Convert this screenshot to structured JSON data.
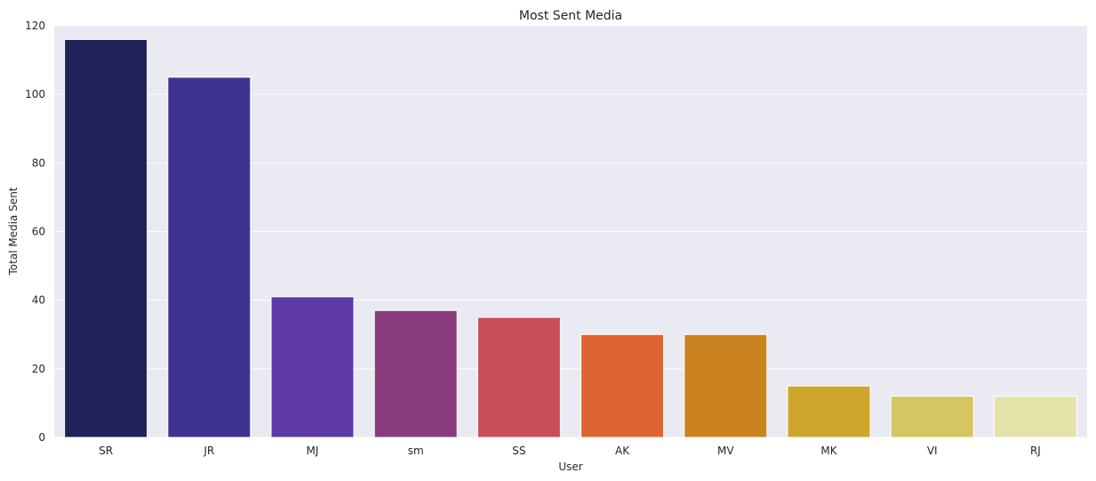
{
  "chart_data": {
    "type": "bar",
    "title": "Most Sent Media",
    "xlabel": "User",
    "ylabel": "Total Media Sent",
    "categories": [
      "SR",
      "JR",
      "MJ",
      "sm",
      "SS",
      "AK",
      "MV",
      "MK",
      "VI",
      "RJ"
    ],
    "values": [
      116,
      105,
      41,
      37,
      35,
      30,
      30,
      15,
      12,
      12
    ],
    "colors": [
      "#22225a",
      "#3e3490",
      "#5e3aa4",
      "#883c7c",
      "#c84e58",
      "#dd6432",
      "#cb8320",
      "#cca72c",
      "#d5c662",
      "#e4e3aa"
    ],
    "ylim": [
      0,
      120
    ],
    "yticks": [
      0,
      20,
      40,
      60,
      80,
      100,
      120
    ],
    "grid": true,
    "style": {
      "background": "#eaeaf2",
      "grid_color": "#ffffff",
      "bar_edge_color": "#ffffff"
    }
  }
}
